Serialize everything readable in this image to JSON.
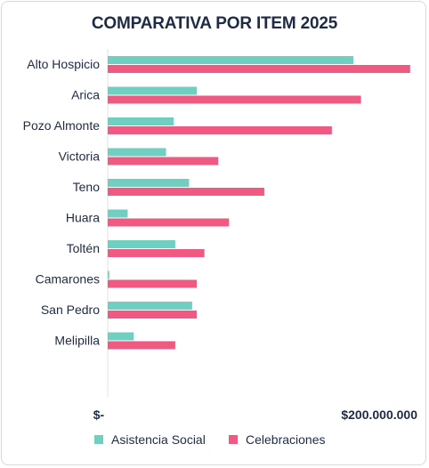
{
  "chart_data": {
    "type": "bar",
    "orientation": "horizontal",
    "title": "COMPARATIVA POR ITEM 2025",
    "categories": [
      "Alto Hospicio",
      "Arica",
      "Pozo Almonte",
      "Victoria",
      "Teno",
      "Huara",
      "Toltén",
      "Camarones",
      "San Pedro",
      "Melipilla"
    ],
    "series": [
      {
        "name": "Asistencia Social",
        "color": "#6fd0c2",
        "values": [
          160000000,
          58000000,
          43000000,
          38000000,
          53000000,
          13000000,
          44000000,
          1000000,
          55000000,
          17000000
        ]
      },
      {
        "name": "Celebraciones",
        "color": "#f05a82",
        "values": [
          197000000,
          165000000,
          146000000,
          72000000,
          102000000,
          79000000,
          63000000,
          58000000,
          58000000,
          44000000
        ]
      }
    ],
    "xlim": [
      0,
      200000000
    ],
    "xticks": [
      {
        "value": 0,
        "label": "$-"
      },
      {
        "value": 200000000,
        "label": "$200.000.000"
      }
    ],
    "grid": false,
    "legend": "bottom"
  }
}
